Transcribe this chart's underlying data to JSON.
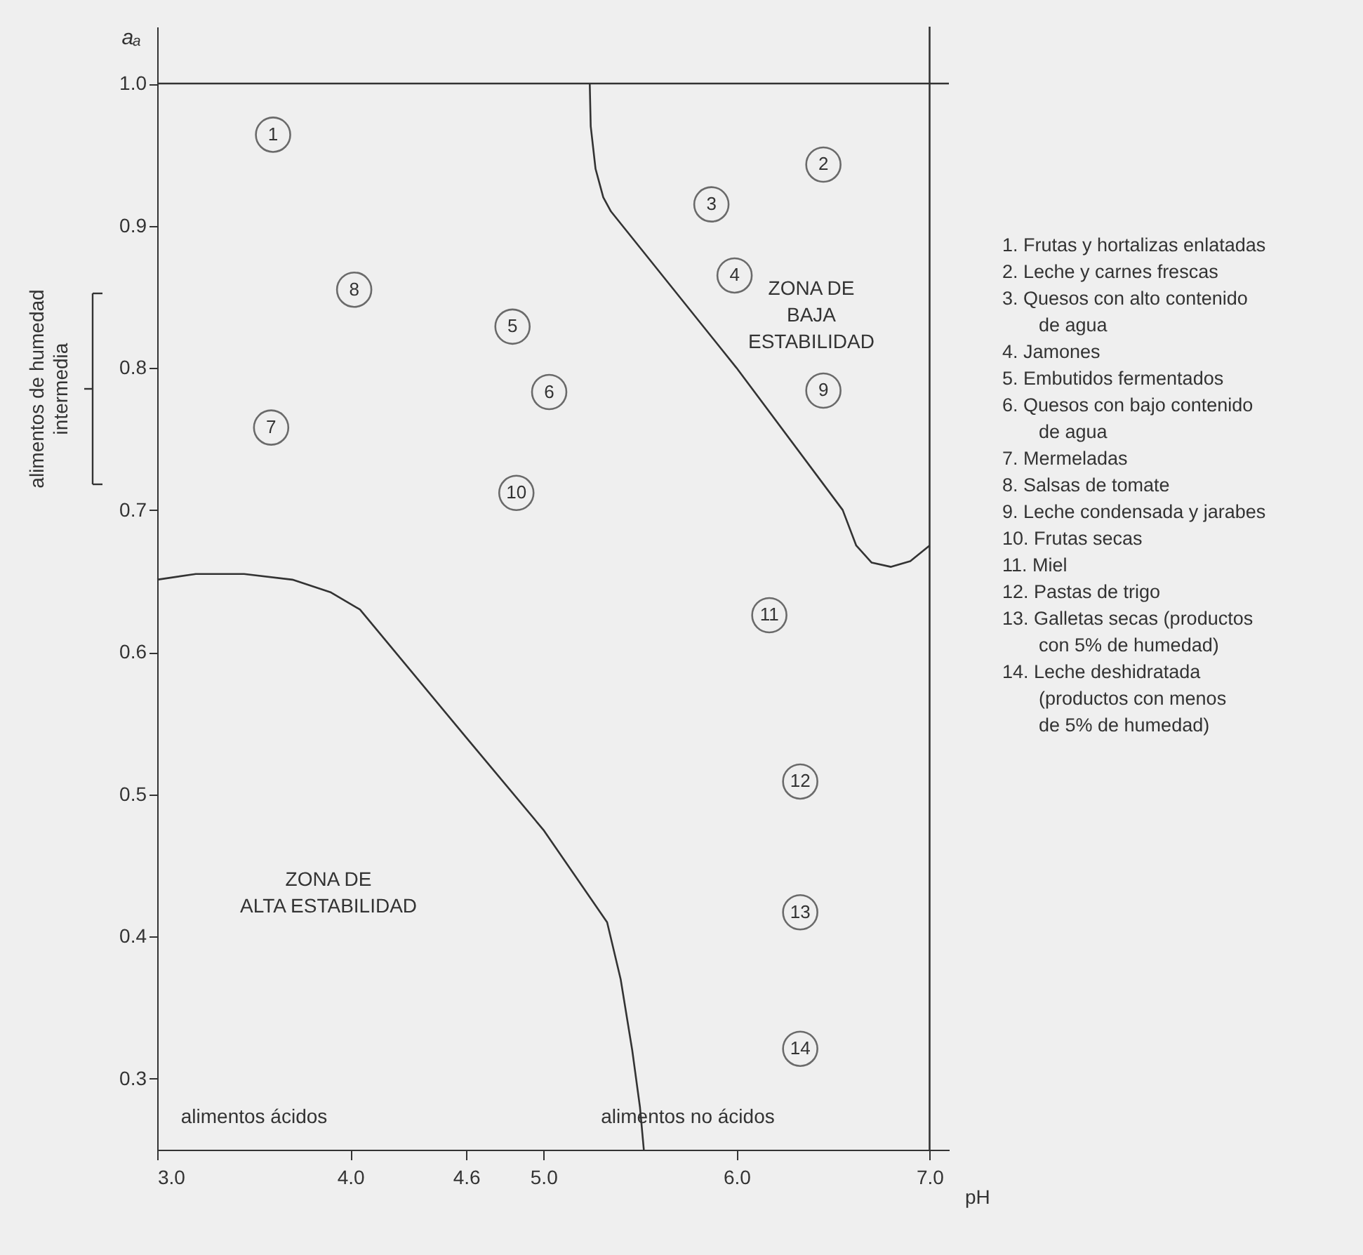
{
  "chart_data": {
    "type": "scatter",
    "xlabel": "pH",
    "ylabel": "aₐ",
    "xlim": [
      3.0,
      7.1
    ],
    "ylim": [
      0.25,
      1.04
    ],
    "xticks": [
      {
        "value": 3,
        "label": "3.0"
      },
      {
        "value": 4,
        "label": "4.0"
      },
      4.6,
      {
        "value": 5,
        "label": "5.0"
      },
      {
        "value": 6,
        "label": "6.0"
      },
      {
        "value": 7,
        "label": "7.0"
      }
    ],
    "yticks": [
      0.3,
      0.4,
      0.5,
      0.6,
      0.7,
      0.8,
      0.9,
      {
        "value": 1,
        "label": "1.0"
      }
    ],
    "marker": "circle",
    "line_style": "solid",
    "series": [
      {
        "name": "1",
        "color": "#333333",
        "x": [
          3.6
        ],
        "values": [
          0.964
        ]
      },
      {
        "name": "2",
        "color": "#333333",
        "x": [
          6.45
        ],
        "values": [
          0.943
        ]
      },
      {
        "name": "3",
        "color": "#333333",
        "x": [
          5.87
        ],
        "values": [
          0.915
        ]
      },
      {
        "name": "4",
        "color": "#333333",
        "x": [
          5.99
        ],
        "values": [
          0.865
        ]
      },
      {
        "name": "5",
        "color": "#333333",
        "x": [
          4.84
        ],
        "values": [
          0.829
        ]
      },
      {
        "name": "6",
        "color": "#333333",
        "x": [
          5.03
        ],
        "values": [
          0.783
        ]
      },
      {
        "name": "7",
        "color": "#333333",
        "x": [
          3.59
        ],
        "values": [
          0.758
        ]
      },
      {
        "name": "8",
        "color": "#333333",
        "x": [
          4.02
        ],
        "values": [
          0.855
        ]
      },
      {
        "name": "9",
        "color": "#333333",
        "x": [
          6.45
        ],
        "values": [
          0.784
        ]
      },
      {
        "name": "10",
        "color": "#333333",
        "x": [
          4.86
        ],
        "values": [
          0.712
        ]
      },
      {
        "name": "11",
        "color": "#333333",
        "x": [
          6.17
        ],
        "values": [
          0.626
        ]
      },
      {
        "name": "12",
        "color": "#333333",
        "x": [
          6.33
        ],
        "values": [
          0.509
        ]
      },
      {
        "name": "13",
        "color": "#333333",
        "x": [
          6.33
        ],
        "values": [
          0.417
        ]
      },
      {
        "name": "14",
        "color": "#333333",
        "x": [
          6.33
        ],
        "values": [
          0.321
        ]
      },
      {
        "type": "line",
        "marker": "none",
        "color": "#333333",
        "x": [
          5.24,
          5.245,
          5.27,
          5.31,
          5.35,
          6.0,
          6.55,
          6.62,
          6.7,
          6.8,
          6.9,
          7.0
        ],
        "values": [
          1.0,
          0.97,
          0.94,
          0.92,
          0.91,
          0.8,
          0.7,
          0.675,
          0.663,
          0.66,
          0.664,
          0.675
        ]
      },
      {
        "type": "line",
        "marker": "none",
        "color": "#333333",
        "x": [
          3.0,
          3.2,
          3.45,
          3.7,
          3.9,
          4.05,
          4.6,
          5.0,
          5.33,
          5.4,
          5.46,
          5.5,
          5.52
        ],
        "values": [
          0.651,
          0.655,
          0.655,
          0.651,
          0.642,
          0.63,
          0.54,
          0.475,
          0.41,
          0.37,
          0.32,
          0.28,
          0.25
        ]
      }
    ],
    "ref_lines": [
      {
        "axis": "y",
        "value": 1.0
      },
      {
        "axis": "x",
        "value": 7.0
      }
    ],
    "annotations": [
      "ZONA DE\nBAJA\nESTABILIDAD",
      "ZONA DE\nALTA ESTABILIDAD",
      "alimentos ácidos",
      "alimentos no ácidos",
      "alimentos de humedad\nintermedia",
      "1.  Frutas y hortalizas enlatadas",
      "2.  Leche y carnes frescas",
      "3.  Quesos con alto contenido\nde agua",
      "4.  Jamones",
      "5.  Embutidos fermentados",
      "6.  Quesos con bajo contenido\nde agua",
      "7.  Mermeladas",
      "8.  Salsas de tomate",
      "9.  Leche condensada y jarabes",
      "10.  Frutas secas",
      "11.  Miel",
      "12.  Pastas de trigo",
      "13.  Galletas secas (productos\ncon 5% de humedad)",
      "14.  Leche deshidratada\n(productos con menos\nde 5% de humedad)"
    ]
  }
}
